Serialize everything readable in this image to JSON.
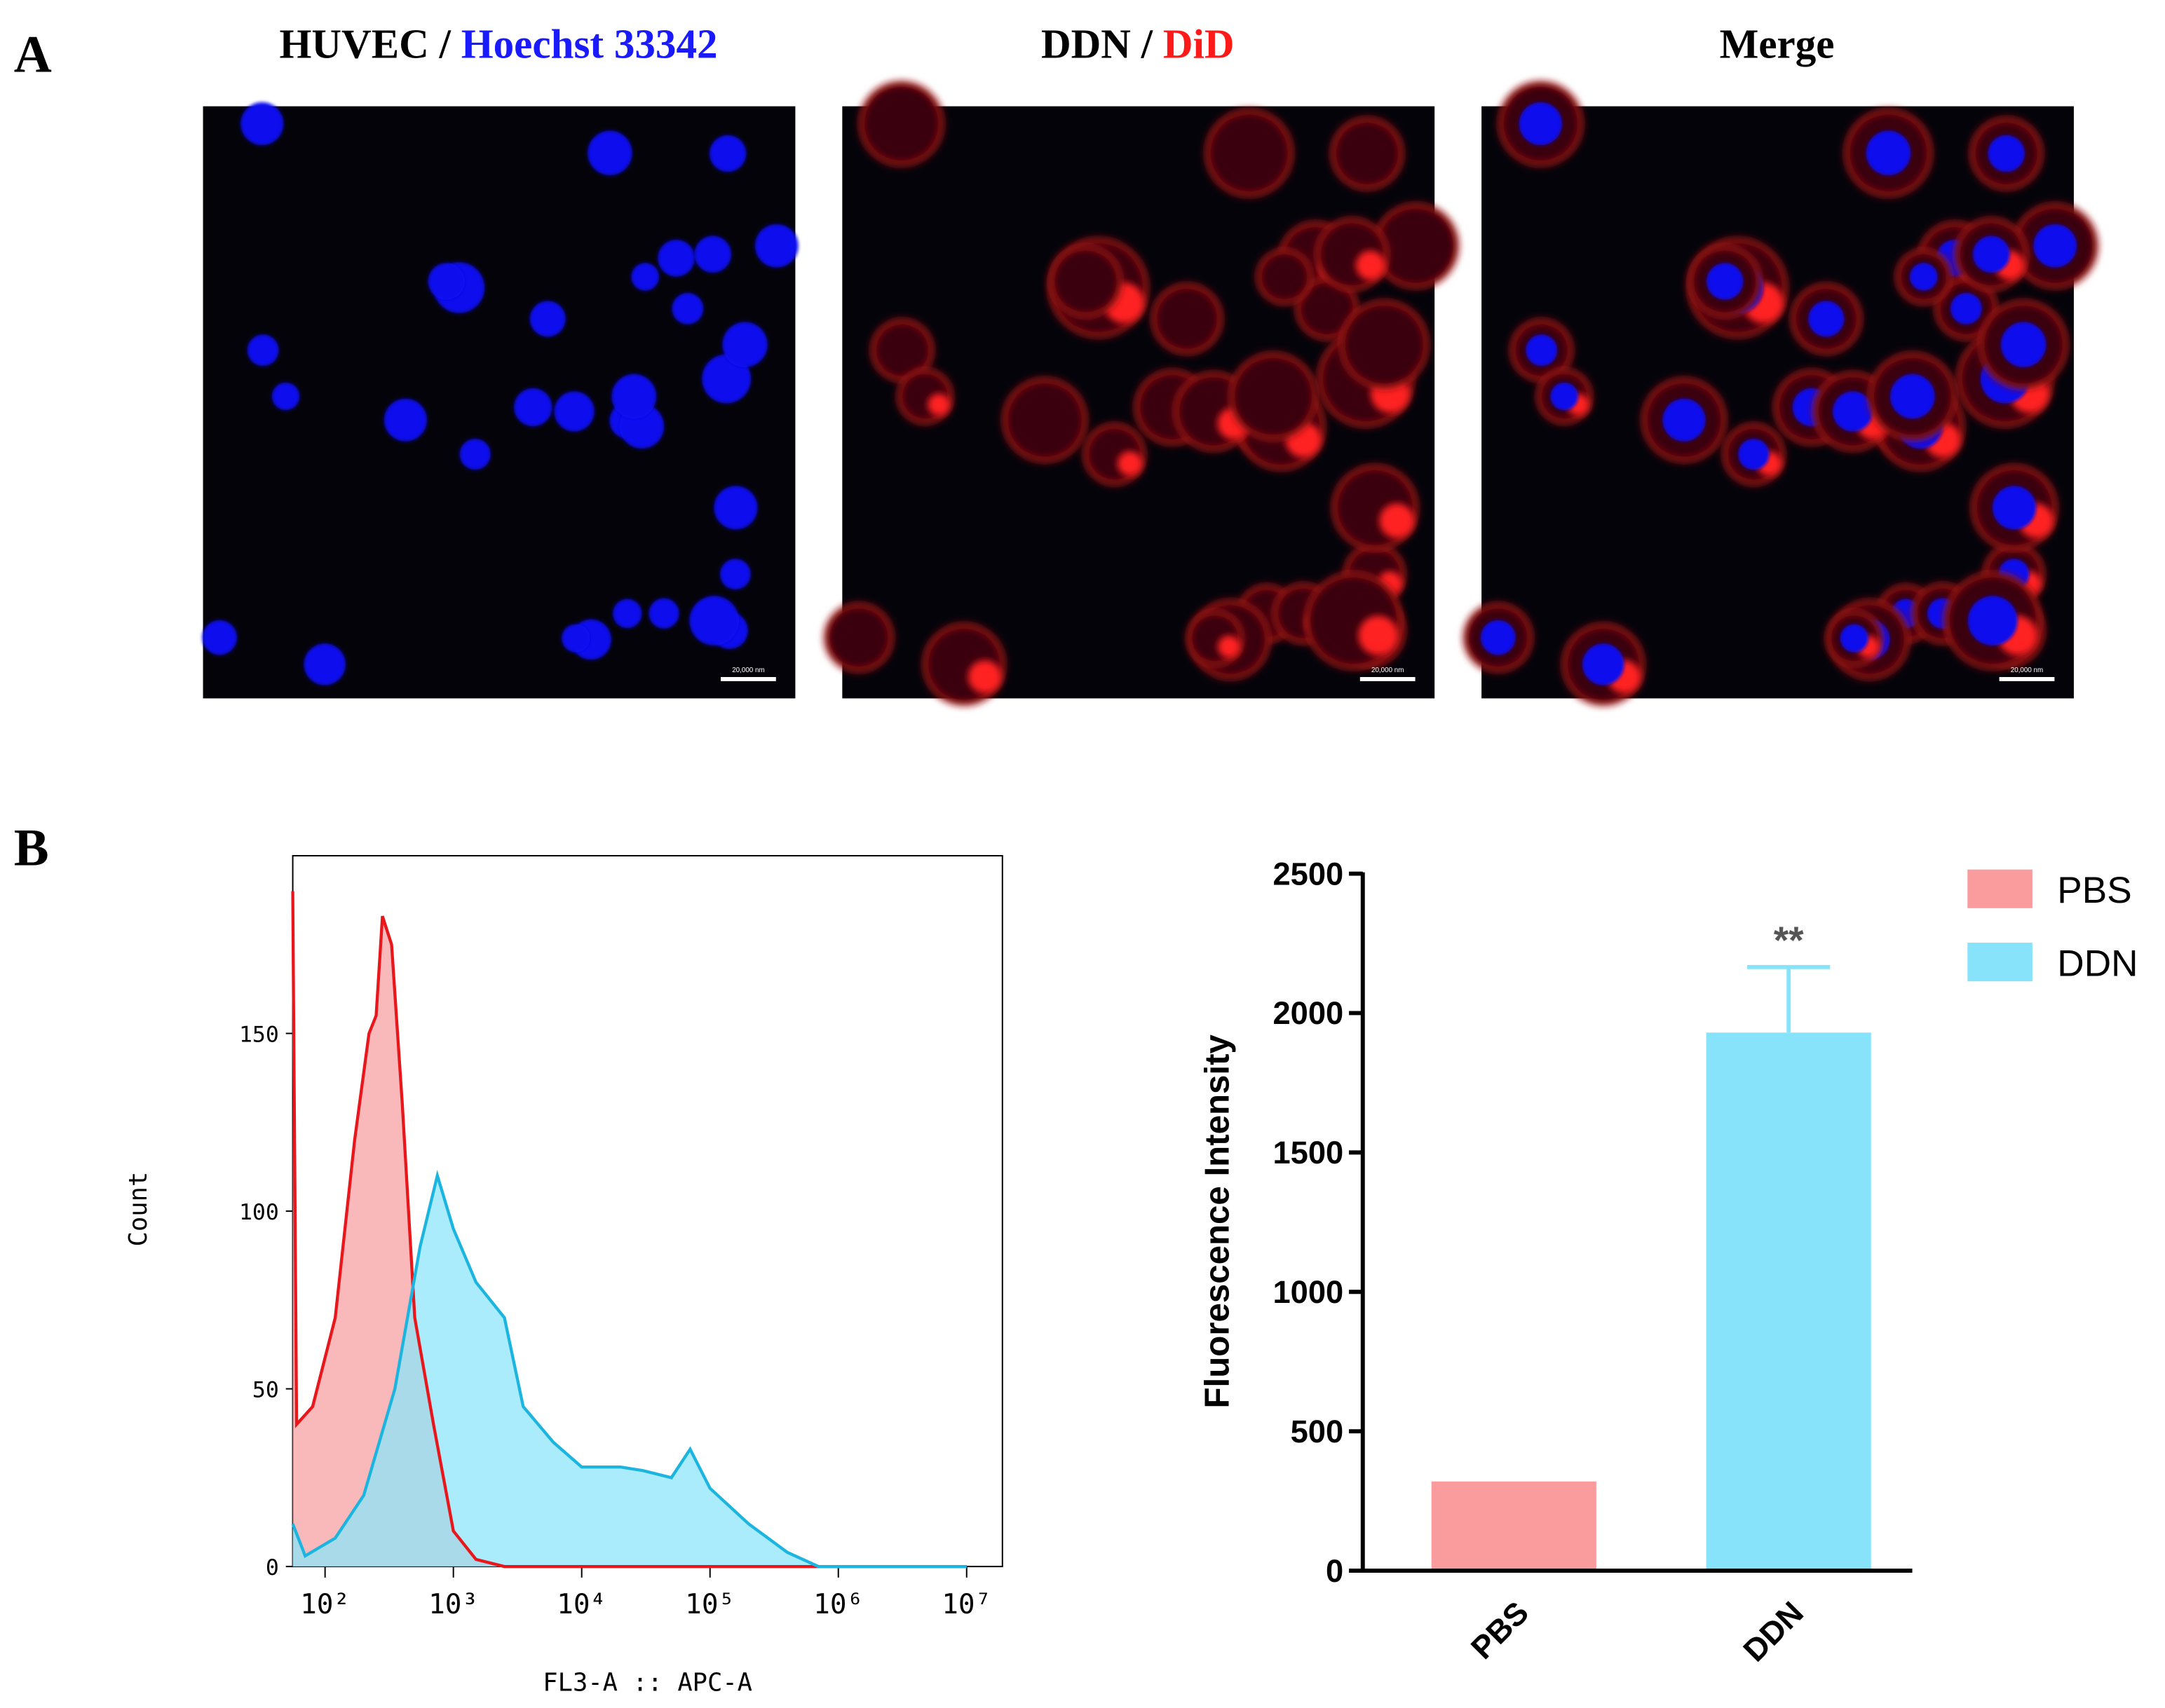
{
  "panels": {
    "labels": [
      "A",
      "B"
    ],
    "images": [
      {
        "title": [
          {
            "text": "HUVEC / ",
            "color": "#000000"
          },
          {
            "text": "Hoechst 33342",
            "color": "#1a1aff"
          }
        ],
        "scale_bar": "20,000 nm",
        "kind": "blue"
      },
      {
        "title": [
          {
            "text": "DDN / ",
            "color": "#000000"
          },
          {
            "text": "DiD",
            "color": "#ff1a1a"
          }
        ],
        "scale_bar": "20,000 nm",
        "kind": "red"
      },
      {
        "title": [
          {
            "text": "Merge",
            "color": "#000000"
          }
        ],
        "scale_bar": "20,000 nm",
        "kind": "merge"
      }
    ]
  },
  "chart_data": [
    {
      "type": "histogram_area",
      "xlabel": "FL3-A :: APC-A",
      "ylabel": "Count",
      "xscale": "log",
      "xlim": [
        56,
        19000000
      ],
      "ylim": [
        0,
        200
      ],
      "xticks": [
        {
          "value": 100,
          "label": "10²"
        },
        {
          "value": 1000,
          "label": "10³"
        },
        {
          "value": 10000,
          "label": "10⁴"
        },
        {
          "value": 100000,
          "label": "10⁵"
        },
        {
          "value": 1000000,
          "label": "10⁶"
        },
        {
          "value": 10000000,
          "label": "10⁷"
        }
      ],
      "yticks": [
        0,
        50,
        100,
        150
      ],
      "series": [
        {
          "name": "PBS",
          "color": "#e8171c",
          "fill": "#f7a1a3",
          "x": [
            56,
            60,
            80,
            120,
            170,
            220,
            250,
            280,
            330,
            400,
            500,
            700,
            1000,
            1500,
            2500,
            10000000
          ],
          "values": [
            190,
            40,
            45,
            70,
            120,
            150,
            155,
            183,
            175,
            130,
            70,
            40,
            10,
            2,
            0,
            0
          ]
        },
        {
          "name": "DDN",
          "color": "#1cb5e0",
          "fill": "#8de6fa",
          "x": [
            56,
            70,
            120,
            200,
            350,
            550,
            750,
            1000,
            1500,
            2500,
            3500,
            6000,
            10000,
            20000,
            30000,
            50000,
            70000,
            100000,
            200000,
            400000,
            700000,
            10000000
          ],
          "values": [
            12,
            3,
            8,
            20,
            50,
            90,
            110,
            95,
            80,
            70,
            45,
            35,
            28,
            28,
            27,
            25,
            33,
            22,
            12,
            4,
            0,
            0
          ]
        }
      ]
    },
    {
      "type": "bar",
      "ylabel": "Fluorescence Intensity",
      "categories": [
        "PBS",
        "DDN"
      ],
      "values": [
        320,
        1930
      ],
      "errors": [
        null,
        235
      ],
      "colors": [
        "#fa9b9d",
        "#87e3fa"
      ],
      "ylim": [
        0,
        2500
      ],
      "yticks": [
        0,
        500,
        1000,
        1500,
        2000,
        2500
      ],
      "legend": "upper right",
      "annotations": [
        {
          "text": "**",
          "x": "DDN"
        }
      ]
    }
  ]
}
